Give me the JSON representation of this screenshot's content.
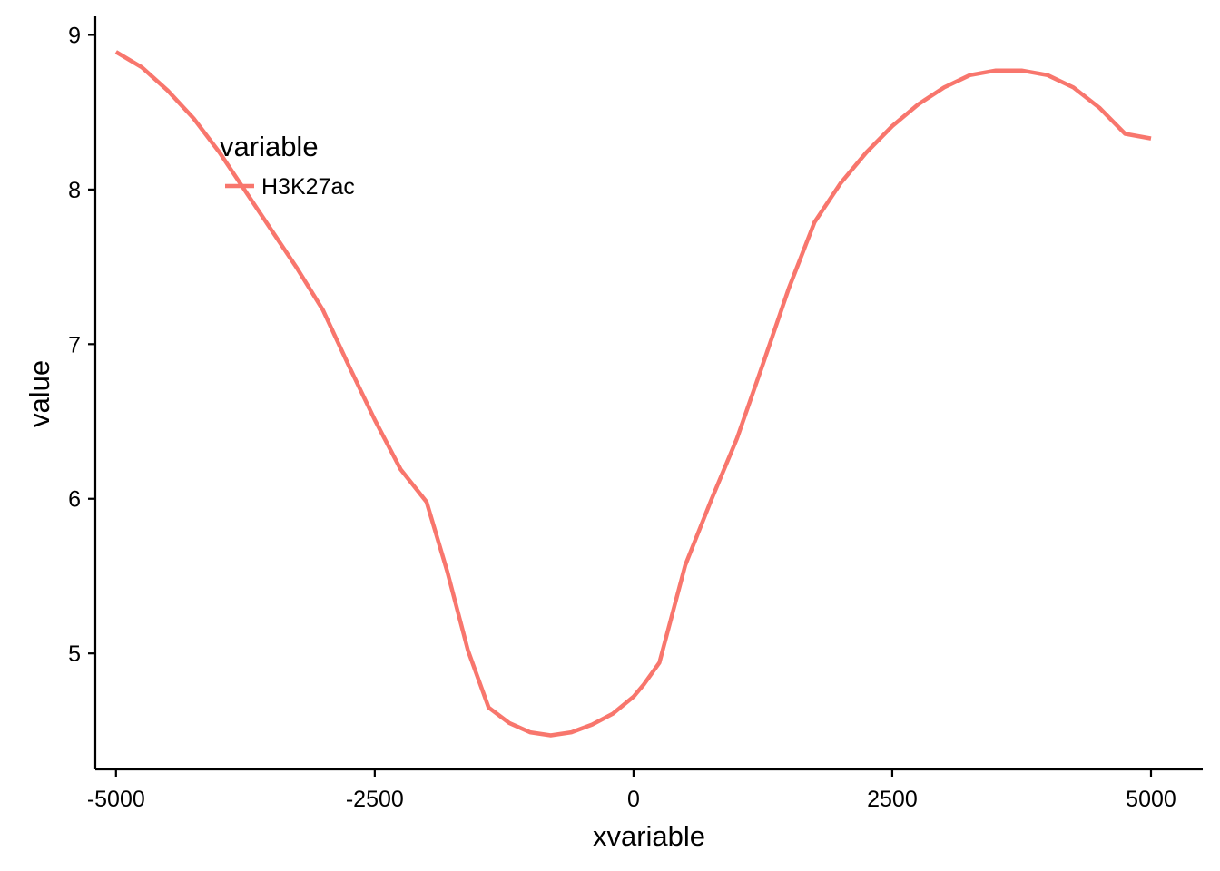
{
  "chart_data": {
    "type": "line",
    "xlabel": "xvariable",
    "ylabel": "value",
    "xlim": [
      -5200,
      5500
    ],
    "ylim": [
      4.25,
      9.12
    ],
    "x_ticks": [
      -5000,
      -2500,
      0,
      2500,
      5000
    ],
    "x_tick_labels": [
      "-5000",
      "-2500",
      "0",
      "2500",
      "5000"
    ],
    "y_ticks": [
      5,
      6,
      7,
      8,
      9
    ],
    "y_tick_labels": [
      "5",
      "6",
      "7",
      "8",
      "9"
    ],
    "grid": false,
    "legend": {
      "title": "variable",
      "placement": "top-left",
      "entries": [
        "H3K27ac"
      ]
    },
    "series": [
      {
        "name": "H3K27ac",
        "color": "#F8766D",
        "x": [
          -5000,
          -4750,
          -4500,
          -4250,
          -4000,
          -3750,
          -3500,
          -3250,
          -3000,
          -2750,
          -2500,
          -2250,
          -2000,
          -1800,
          -1600,
          -1400,
          -1200,
          -1000,
          -800,
          -600,
          -400,
          -200,
          0,
          100,
          250,
          500,
          750,
          1000,
          1250,
          1500,
          1750,
          2000,
          2250,
          2500,
          2750,
          3000,
          3250,
          3500,
          3750,
          4000,
          4250,
          4500,
          4750,
          5000
        ],
        "y": [
          8.89,
          8.79,
          8.64,
          8.46,
          8.24,
          7.99,
          7.74,
          7.49,
          7.22,
          6.86,
          6.51,
          6.19,
          5.98,
          5.53,
          5.02,
          4.65,
          4.55,
          4.49,
          4.47,
          4.49,
          4.54,
          4.61,
          4.72,
          4.8,
          4.94,
          5.57,
          5.99,
          6.39,
          6.87,
          7.36,
          7.79,
          8.04,
          8.24,
          8.41,
          8.55,
          8.66,
          8.74,
          8.77,
          8.77,
          8.74,
          8.66,
          8.53,
          8.36,
          8.33
        ]
      }
    ]
  }
}
